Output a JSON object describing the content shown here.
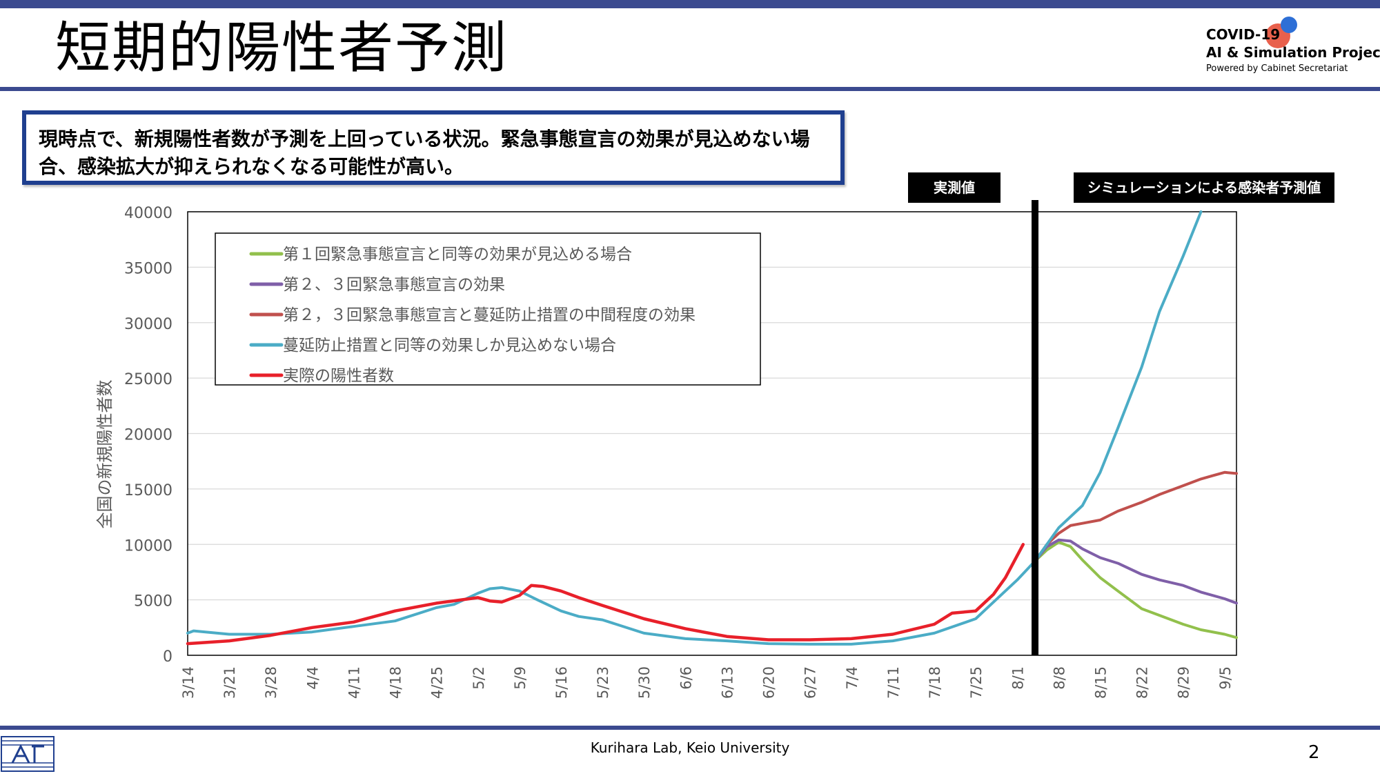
{
  "slide": {
    "title": "短期的陽性者予測",
    "callout": "現時点で、新規陽性者数が予測を上回っている状況。緊急事態宣言の効果が見込めない場合、感染拡大が抑えられなくなる可能性が高い。",
    "footer": "Kurihara Lab, Keio University",
    "page_number": "2"
  },
  "logo": {
    "line1": "COVID-19",
    "line2": "AI & Simulation Project",
    "line3": "Powered by Cabinet Secretariat",
    "dot_colors": [
      "#e8604c",
      "#2e6fd6"
    ]
  },
  "annotations": {
    "observed_label": "実測値",
    "simulation_label": "シミュレーションによる感染者予測値"
  },
  "chart_data": {
    "type": "line",
    "ylabel": "全国の新規陽性者数",
    "ylim": [
      0,
      40000
    ],
    "yticks": [
      0,
      5000,
      10000,
      15000,
      20000,
      25000,
      30000,
      35000,
      40000
    ],
    "xticks": [
      "3/14",
      "3/21",
      "3/28",
      "4/4",
      "4/11",
      "4/18",
      "4/25",
      "5/2",
      "5/9",
      "5/16",
      "5/23",
      "5/30",
      "6/6",
      "6/13",
      "6/20",
      "6/27",
      "7/4",
      "7/11",
      "7/18",
      "7/25",
      "8/1",
      "8/8",
      "8/15",
      "8/22",
      "8/29",
      "9/5"
    ],
    "grid": "horizontal",
    "legend_position": "top-left",
    "divider_date": "8/4",
    "series": [
      {
        "name": "第１回緊急事態宣言と同等の効果が見込める場合",
        "color": "#92c04c",
        "x": [
          "8/4",
          "8/6",
          "8/8",
          "8/10",
          "8/12",
          "8/15",
          "8/18",
          "8/22",
          "8/25",
          "8/29",
          "9/1",
          "9/5",
          "9/7"
        ],
        "values": [
          8500,
          9500,
          10200,
          9800,
          8600,
          7000,
          5800,
          4200,
          3600,
          2800,
          2300,
          1900,
          1600
        ]
      },
      {
        "name": "第２、３回緊急事態宣言の効果",
        "color": "#7f5fa8",
        "x": [
          "8/4",
          "8/6",
          "8/8",
          "8/10",
          "8/12",
          "8/15",
          "8/18",
          "8/22",
          "8/25",
          "8/29",
          "9/1",
          "9/5",
          "9/7"
        ],
        "values": [
          8500,
          9800,
          10400,
          10300,
          9600,
          8800,
          8300,
          7300,
          6800,
          6300,
          5700,
          5100,
          4700
        ]
      },
      {
        "name": "第２，３回緊急事態宣言と蔓延防止措置の中間程度の効果",
        "color": "#c0504d",
        "x": [
          "8/4",
          "8/6",
          "8/8",
          "8/10",
          "8/12",
          "8/15",
          "8/18",
          "8/22",
          "8/25",
          "8/29",
          "9/1",
          "9/3",
          "9/5",
          "9/7"
        ],
        "values": [
          8500,
          10000,
          11000,
          11700,
          11900,
          12200,
          13000,
          13800,
          14500,
          15300,
          15900,
          16200,
          16500,
          16400
        ]
      },
      {
        "name": "蔓延防止措置と同等の効果しか見込めない場合",
        "color": "#4bacc6",
        "x": [
          "3/14",
          "3/15",
          "3/21",
          "3/28",
          "4/4",
          "4/11",
          "4/18",
          "4/25",
          "4/28",
          "5/2",
          "5/4",
          "5/6",
          "5/9",
          "5/12",
          "5/16",
          "5/19",
          "5/23",
          "5/30",
          "6/6",
          "6/13",
          "6/20",
          "6/27",
          "7/4",
          "7/11",
          "7/18",
          "7/25",
          "7/28",
          "8/1",
          "8/4",
          "8/8",
          "8/12",
          "8/15",
          "8/18",
          "8/22",
          "8/25",
          "8/29",
          "9/1"
        ],
        "values": [
          2000,
          2200,
          1900,
          1900,
          2100,
          2600,
          3100,
          4300,
          4600,
          5600,
          6000,
          6100,
          5800,
          5000,
          4000,
          3500,
          3200,
          2000,
          1500,
          1300,
          1050,
          1000,
          1000,
          1300,
          2000,
          3300,
          4800,
          6800,
          8500,
          11500,
          13500,
          16500,
          20500,
          26000,
          31000,
          36000,
          40000
        ]
      },
      {
        "name": "実際の陽性者数",
        "color": "#e8202a",
        "x": [
          "3/14",
          "3/21",
          "3/28",
          "4/4",
          "4/11",
          "4/18",
          "4/25",
          "5/2",
          "5/4",
          "5/6",
          "5/9",
          "5/11",
          "5/13",
          "5/16",
          "5/19",
          "5/23",
          "5/30",
          "6/6",
          "6/13",
          "6/20",
          "6/27",
          "7/4",
          "7/11",
          "7/18",
          "7/21",
          "7/25",
          "7/28",
          "7/30",
          "8/1",
          "8/2"
        ],
        "values": [
          1050,
          1300,
          1800,
          2500,
          3000,
          4000,
          4700,
          5200,
          4900,
          4800,
          5400,
          6300,
          6200,
          5800,
          5200,
          4500,
          3300,
          2400,
          1700,
          1400,
          1400,
          1500,
          1900,
          2800,
          3800,
          4000,
          5500,
          7000,
          9000,
          10000
        ]
      }
    ]
  }
}
